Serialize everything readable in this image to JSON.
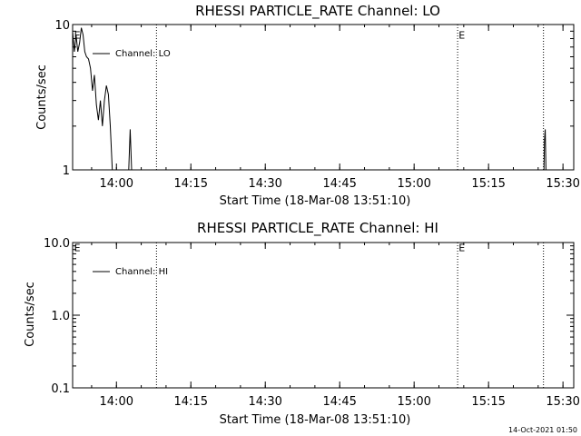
{
  "colors": {
    "background": "#ffffff",
    "foreground": "#000000"
  },
  "footer": {
    "timestamp": "14-Oct-2021 01:50"
  },
  "chart_data": [
    {
      "type": "line",
      "title": "RHESSI PARTICLE_RATE Channel: LO",
      "xlabel": "Start Time (18-Mar-08 13:51:10)",
      "ylabel": "Counts/sec",
      "x_unit": "minutes after 13:51:10",
      "xlim": [
        0,
        101
      ],
      "y_scale": "log",
      "ylim": [
        1,
        10
      ],
      "y_ticks": [
        {
          "value": 1,
          "label": "1"
        },
        {
          "value": 10,
          "label": "10"
        }
      ],
      "x_ticks": [
        {
          "value": 8.83,
          "label": "14:00"
        },
        {
          "value": 23.83,
          "label": "14:15"
        },
        {
          "value": 38.83,
          "label": "14:30"
        },
        {
          "value": 53.83,
          "label": "14:45"
        },
        {
          "value": 68.83,
          "label": "15:00"
        },
        {
          "value": 83.83,
          "label": "15:15"
        },
        {
          "value": 98.83,
          "label": "15:30"
        }
      ],
      "vlines": [
        16.9,
        77.6,
        94.9
      ],
      "markers": [
        {
          "x": 0.3,
          "y": 8.5,
          "label": "E"
        },
        {
          "x": 77.8,
          "y": 8.5,
          "label": "E"
        }
      ],
      "legend": "top-left",
      "series": [
        {
          "name": "Channel: LO",
          "x": [
            0,
            0.35,
            0.7,
            1.05,
            1.4,
            1.75,
            2.1,
            2.45,
            2.8,
            3.2,
            3.6,
            4.0,
            4.4,
            4.8,
            5.2,
            5.6,
            6.0,
            6.4,
            6.8,
            7.2,
            7.6,
            8.0,
            8.4,
            8.8,
            9.2
          ],
          "y": [
            9.0,
            6.5,
            8.5,
            6.5,
            7.5,
            9.5,
            8.5,
            6.5,
            6.0,
            5.8,
            5.0,
            3.5,
            4.5,
            2.8,
            2.2,
            3.0,
            2.0,
            3.0,
            3.8,
            3.3,
            2.0,
            1.0,
            1.0,
            1.0,
            1.0
          ]
        },
        {
          "name": "Channel: LO",
          "x": [
            11.3,
            11.6,
            11.9,
            12.2
          ],
          "y": [
            1.0,
            1.9,
            1.0,
            1.0
          ]
        },
        {
          "name": "Channel: LO",
          "x": [
            95.0,
            95.1,
            95.25,
            95.4
          ],
          "y": [
            1.0,
            1.6,
            1.9,
            1.0
          ]
        }
      ]
    },
    {
      "type": "line",
      "title": "RHESSI PARTICLE_RATE Channel: HI",
      "xlabel": "Start Time (18-Mar-08 13:51:10)",
      "ylabel": "Counts/sec",
      "x_unit": "minutes after 13:51:10",
      "xlim": [
        0,
        101
      ],
      "y_scale": "log",
      "ylim": [
        0.1,
        10
      ],
      "y_ticks": [
        {
          "value": 0.1,
          "label": "0.1"
        },
        {
          "value": 1,
          "label": "1.0"
        },
        {
          "value": 10,
          "label": "10.0"
        }
      ],
      "x_ticks": [
        {
          "value": 8.83,
          "label": "14:00"
        },
        {
          "value": 23.83,
          "label": "14:15"
        },
        {
          "value": 38.83,
          "label": "14:30"
        },
        {
          "value": 53.83,
          "label": "14:45"
        },
        {
          "value": 68.83,
          "label": "15:00"
        },
        {
          "value": 83.83,
          "label": "15:15"
        },
        {
          "value": 98.83,
          "label": "15:30"
        }
      ],
      "vlines": [
        16.9,
        77.6,
        94.9
      ],
      "markers": [
        {
          "x": 0.3,
          "y": 8.5,
          "label": "E"
        },
        {
          "x": 77.8,
          "y": 8.5,
          "label": "E"
        }
      ],
      "legend": "top-left",
      "series": [
        {
          "name": "Channel: HI",
          "x": [],
          "y": []
        }
      ]
    }
  ]
}
